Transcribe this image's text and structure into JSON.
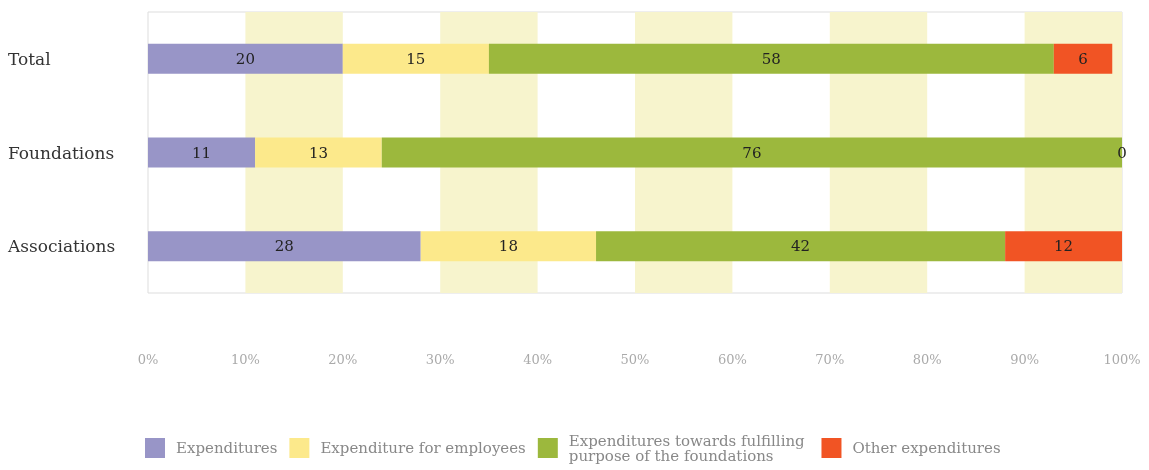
{
  "chart_data": {
    "type": "bar",
    "orientation": "horizontal",
    "stacked": true,
    "data_labels": true,
    "legend": "bottom",
    "grid": false,
    "categories": [
      "Total",
      "Foundations",
      "Associations"
    ],
    "series": [
      {
        "name": "Expenditures",
        "color": "#9895c7",
        "values": [
          20,
          11,
          28
        ]
      },
      {
        "name": "Expenditure for employees",
        "color": "#fce98b",
        "values": [
          15,
          13,
          18
        ]
      },
      {
        "name": "Expenditures towards fulfilling purpose of the foundations",
        "color": "#9cb83d",
        "values": [
          58,
          76,
          42
        ]
      },
      {
        "name": "Other expenditures",
        "color": "#f15424",
        "values": [
          6,
          0,
          12
        ]
      }
    ],
    "xlim": [
      0,
      100
    ],
    "xticks": [
      {
        "value": 0,
        "label": "0%"
      },
      {
        "value": 10,
        "label": "10%"
      },
      {
        "value": 20,
        "label": "20%"
      },
      {
        "value": 30,
        "label": "30%"
      },
      {
        "value": 40,
        "label": "40%"
      },
      {
        "value": 50,
        "label": "50%"
      },
      {
        "value": 60,
        "label": "60%"
      },
      {
        "value": 70,
        "label": "70%"
      },
      {
        "value": 80,
        "label": "80%"
      },
      {
        "value": 90,
        "label": "90%"
      },
      {
        "value": 100,
        "label": "100%"
      }
    ],
    "bands": [
      {
        "axis": "x",
        "from": 10,
        "to": 20,
        "color": "#f7f4cd"
      },
      {
        "axis": "x",
        "from": 30,
        "to": 40,
        "color": "#f7f4cd"
      },
      {
        "axis": "x",
        "from": 50,
        "to": 60,
        "color": "#f7f4cd"
      },
      {
        "axis": "x",
        "from": 70,
        "to": 80,
        "color": "#f7f4cd"
      },
      {
        "axis": "x",
        "from": 90,
        "to": 100,
        "color": "#f7f4cd"
      }
    ]
  }
}
